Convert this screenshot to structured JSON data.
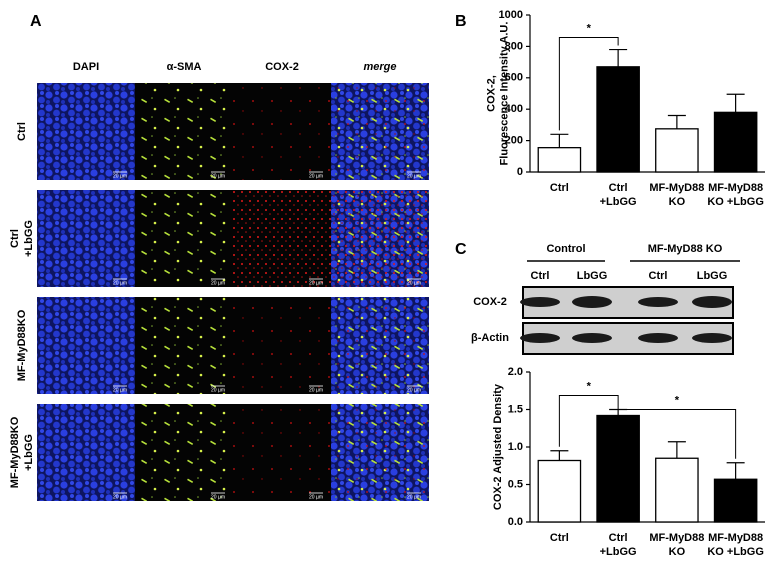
{
  "panel_a": {
    "label": "A",
    "columns": [
      "DAPI",
      "α-SMA",
      "COX-2",
      "merge"
    ],
    "rows": [
      [
        "Ctrl"
      ],
      [
        "Ctrl",
        "+LbGG"
      ],
      [
        "MF-MyD88KO"
      ],
      [
        "MF-MyD88KO",
        "+LbGG"
      ]
    ],
    "scale_bar": "20 µm"
  },
  "panel_b": {
    "label": "B"
  },
  "panel_c": {
    "label": "C",
    "groups": [
      "Control",
      "MF-MyD88 KO"
    ],
    "lanes": [
      "Ctrl",
      "LbGG",
      "Ctrl",
      "LbGG"
    ],
    "rows": [
      "COX-2",
      "β-Actin"
    ]
  },
  "chart_data": [
    {
      "type": "bar",
      "ylabel": [
        "COX-2,",
        "Fluorescence Intensity A.U."
      ],
      "categories": [
        [
          "Ctrl"
        ],
        [
          "Ctrl",
          "+LbGG"
        ],
        [
          "MF-MyD88",
          "KO"
        ],
        [
          "MF-MyD88",
          "KO +LbGG"
        ]
      ],
      "values": [
        155,
        670,
        275,
        380
      ],
      "errors": [
        85,
        110,
        85,
        115
      ],
      "colors": [
        "#ffffff",
        "#000000",
        "#ffffff",
        "#000000"
      ],
      "ylim": [
        0,
        1000
      ],
      "yticks": [
        0,
        200,
        400,
        600,
        800,
        1000
      ],
      "annotations": [
        "*"
      ]
    },
    {
      "type": "bar",
      "ylabel": [
        "COX-2 Adjusted Density"
      ],
      "categories": [
        [
          "Ctrl"
        ],
        [
          "Ctrl",
          "+LbGG"
        ],
        [
          "MF-MyD88",
          "KO"
        ],
        [
          "MF-MyD88",
          "KO +LbGG"
        ]
      ],
      "values": [
        0.82,
        1.42,
        0.85,
        0.57
      ],
      "errors": [
        0.13,
        0.08,
        0.22,
        0.22
      ],
      "colors": [
        "#ffffff",
        "#000000",
        "#ffffff",
        "#000000"
      ],
      "ylim": [
        0,
        2
      ],
      "yticks": [
        {
          "value": 0,
          "label": "0.0"
        },
        0.5,
        {
          "value": 1,
          "label": "1.0"
        },
        1.5,
        {
          "value": 2,
          "label": "2.0"
        }
      ],
      "annotations": [
        "*",
        "*"
      ]
    }
  ]
}
